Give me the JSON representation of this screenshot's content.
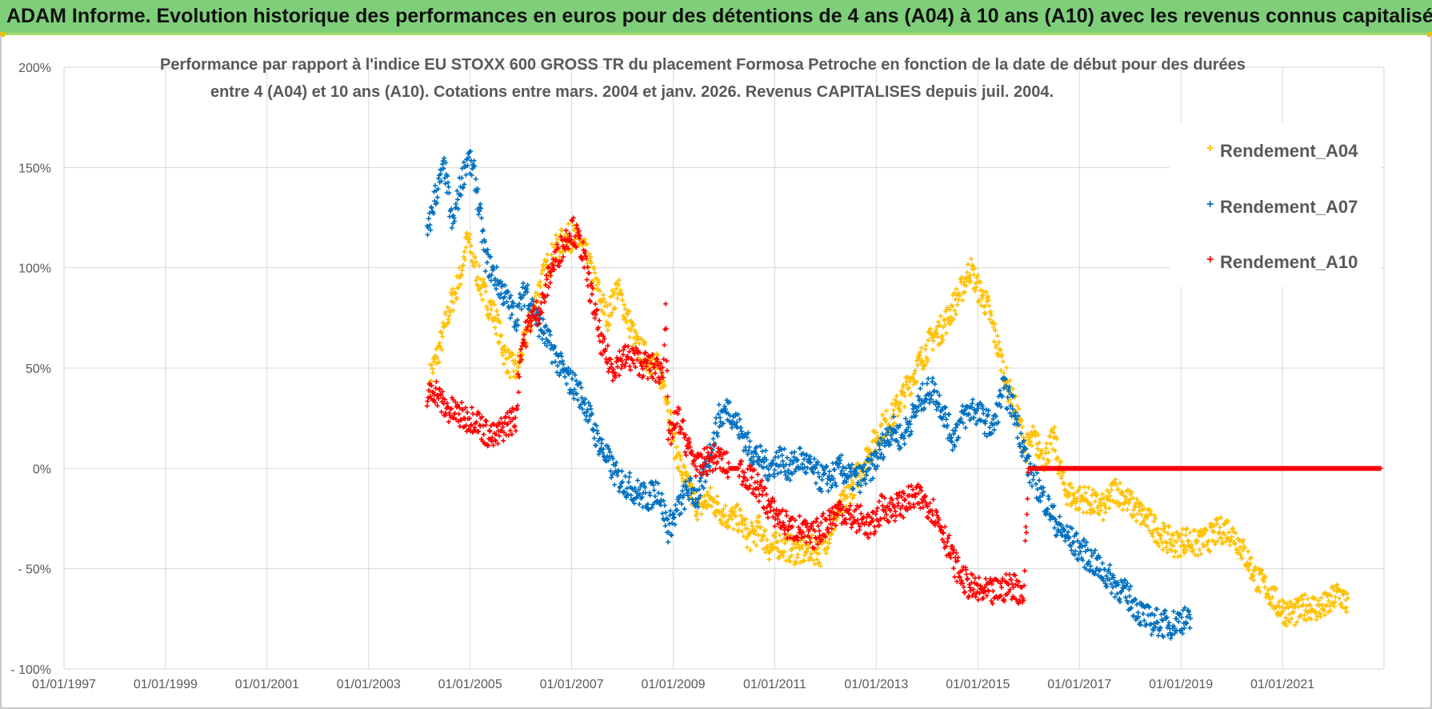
{
  "banner": {
    "title": "ADAM Informe. Evolution historique des performances en euros pour des détentions de 4 ans (A04) à 10 ans (A10) avec les revenus connus capitalisés"
  },
  "colors": {
    "banner_bg": "#7fcf7a",
    "A04": "#ffc000",
    "A07": "#0070c0",
    "A10": "#ff0000",
    "grid": "#d9d9d9"
  },
  "chart_data": {
    "type": "scatter",
    "title_line1": "Performance par rapport à l'indice EU STOXX 600 GROSS TR  du placement Formosa Petroche  en fonction de la date de début pour des durées",
    "title_line2": "entre 4 (A04) et 10 ans (A10).  Cotations entre mars. 2004 et janv. 2026. Revenus CAPITALISES depuis juil. 2004.",
    "xlim": [
      1997.0,
      2023.0
    ],
    "ylim": [
      -100,
      200
    ],
    "x_ticks": [
      {
        "value": 1997,
        "label": "01/01/1997"
      },
      {
        "value": 1999,
        "label": "01/01/1999"
      },
      {
        "value": 2001,
        "label": "01/01/2001"
      },
      {
        "value": 2003,
        "label": "01/01/2003"
      },
      {
        "value": 2005,
        "label": "01/01/2005"
      },
      {
        "value": 2007,
        "label": "01/01/2007"
      },
      {
        "value": 2009,
        "label": "01/01/2009"
      },
      {
        "value": 2011,
        "label": "01/01/2011"
      },
      {
        "value": 2013,
        "label": "01/01/2013"
      },
      {
        "value": 2015,
        "label": "01/01/2015"
      },
      {
        "value": 2017,
        "label": "01/01/2017"
      },
      {
        "value": 2019,
        "label": "01/01/2019"
      },
      {
        "value": 2021,
        "label": "01/01/2021"
      }
    ],
    "y_ticks": [
      {
        "value": 200,
        "label": "200%"
      },
      {
        "value": 150,
        "label": "150%"
      },
      {
        "value": 100,
        "label": "100%"
      },
      {
        "value": 50,
        "label": "50%"
      },
      {
        "value": 0,
        "label": "0%"
      },
      {
        "value": -50,
        "label": "- 50%"
      },
      {
        "value": -100,
        "label": "- 100%"
      }
    ],
    "legend": [
      "Rendement_A04",
      "Rendement_A07",
      "Rendement_A10"
    ],
    "series": [
      {
        "name": "Rendement_A04",
        "color": "#ffc000",
        "points": [
          [
            2004.2,
            45
          ],
          [
            2004.4,
            60
          ],
          [
            2004.6,
            80
          ],
          [
            2004.8,
            95
          ],
          [
            2004.95,
            115
          ],
          [
            2005.1,
            100
          ],
          [
            2005.3,
            85
          ],
          [
            2005.5,
            75
          ],
          [
            2005.7,
            55
          ],
          [
            2005.9,
            48
          ],
          [
            2006.1,
            65
          ],
          [
            2006.3,
            85
          ],
          [
            2006.5,
            100
          ],
          [
            2006.7,
            110
          ],
          [
            2006.9,
            115
          ],
          [
            2007.1,
            115
          ],
          [
            2007.3,
            105
          ],
          [
            2007.5,
            90
          ],
          [
            2007.7,
            75
          ],
          [
            2007.9,
            90
          ],
          [
            2008.1,
            75
          ],
          [
            2008.3,
            60
          ],
          [
            2008.5,
            55
          ],
          [
            2008.7,
            50
          ],
          [
            2008.85,
            40
          ],
          [
            2009.0,
            15
          ],
          [
            2009.15,
            0
          ],
          [
            2009.3,
            -10
          ],
          [
            2009.5,
            -20
          ],
          [
            2009.7,
            -15
          ],
          [
            2009.9,
            -20
          ],
          [
            2010.1,
            -25
          ],
          [
            2010.3,
            -25
          ],
          [
            2010.5,
            -35
          ],
          [
            2010.7,
            -30
          ],
          [
            2010.9,
            -40
          ],
          [
            2011.1,
            -38
          ],
          [
            2011.3,
            -40
          ],
          [
            2011.5,
            -42
          ],
          [
            2011.7,
            -40
          ],
          [
            2011.9,
            -42
          ],
          [
            2012.1,
            -30
          ],
          [
            2012.3,
            -20
          ],
          [
            2012.5,
            -10
          ],
          [
            2012.7,
            0
          ],
          [
            2012.9,
            10
          ],
          [
            2013.1,
            20
          ],
          [
            2013.3,
            25
          ],
          [
            2013.5,
            35
          ],
          [
            2013.7,
            45
          ],
          [
            2013.9,
            55
          ],
          [
            2014.1,
            65
          ],
          [
            2014.3,
            70
          ],
          [
            2014.5,
            80
          ],
          [
            2014.7,
            90
          ],
          [
            2014.85,
            100
          ],
          [
            2015.0,
            90
          ],
          [
            2015.2,
            80
          ],
          [
            2015.4,
            60
          ],
          [
            2015.6,
            40
          ],
          [
            2015.8,
            25
          ],
          [
            2015.95,
            10
          ],
          [
            2016.1,
            15
          ],
          [
            2016.3,
            5
          ],
          [
            2016.5,
            15
          ],
          [
            2016.7,
            -10
          ],
          [
            2016.9,
            -15
          ],
          [
            2017.1,
            -15
          ],
          [
            2017.3,
            -18
          ],
          [
            2017.5,
            -20
          ],
          [
            2017.7,
            -10
          ],
          [
            2017.9,
            -15
          ],
          [
            2018.1,
            -20
          ],
          [
            2018.3,
            -25
          ],
          [
            2018.5,
            -30
          ],
          [
            2018.7,
            -35
          ],
          [
            2018.9,
            -38
          ],
          [
            2019.1,
            -35
          ],
          [
            2019.3,
            -38
          ],
          [
            2019.5,
            -36
          ],
          [
            2019.7,
            -32
          ],
          [
            2019.9,
            -30
          ],
          [
            2020.1,
            -35
          ],
          [
            2020.3,
            -45
          ],
          [
            2020.5,
            -55
          ],
          [
            2020.7,
            -60
          ],
          [
            2020.9,
            -68
          ],
          [
            2021.1,
            -72
          ],
          [
            2021.3,
            -72
          ],
          [
            2021.5,
            -68
          ],
          [
            2021.7,
            -70
          ],
          [
            2021.9,
            -68
          ],
          [
            2022.1,
            -62
          ],
          [
            2022.3,
            -68
          ]
        ]
      },
      {
        "name": "Rendement_A07",
        "color": "#0070c0",
        "points": [
          [
            2004.15,
            115
          ],
          [
            2004.3,
            135
          ],
          [
            2004.5,
            150
          ],
          [
            2004.65,
            120
          ],
          [
            2004.8,
            140
          ],
          [
            2004.95,
            155
          ],
          [
            2005.1,
            145
          ],
          [
            2005.3,
            105
          ],
          [
            2005.5,
            95
          ],
          [
            2005.7,
            85
          ],
          [
            2005.9,
            75
          ],
          [
            2006.1,
            90
          ],
          [
            2006.3,
            75
          ],
          [
            2006.5,
            65
          ],
          [
            2006.7,
            55
          ],
          [
            2006.9,
            45
          ],
          [
            2007.1,
            40
          ],
          [
            2007.3,
            30
          ],
          [
            2007.5,
            15
          ],
          [
            2007.7,
            5
          ],
          [
            2007.9,
            -5
          ],
          [
            2008.1,
            -8
          ],
          [
            2008.3,
            -12
          ],
          [
            2008.5,
            -15
          ],
          [
            2008.7,
            -10
          ],
          [
            2008.9,
            -30
          ],
          [
            2009.1,
            -20
          ],
          [
            2009.3,
            -10
          ],
          [
            2009.5,
            -15
          ],
          [
            2009.7,
            5
          ],
          [
            2009.9,
            25
          ],
          [
            2010.1,
            30
          ],
          [
            2010.3,
            20
          ],
          [
            2010.5,
            10
          ],
          [
            2010.7,
            5
          ],
          [
            2010.9,
            0
          ],
          [
            2011.1,
            5
          ],
          [
            2011.3,
            0
          ],
          [
            2011.5,
            5
          ],
          [
            2011.7,
            0
          ],
          [
            2011.9,
            -5
          ],
          [
            2012.1,
            -5
          ],
          [
            2012.3,
            0
          ],
          [
            2012.5,
            -5
          ],
          [
            2012.7,
            -5
          ],
          [
            2012.9,
            0
          ],
          [
            2013.1,
            10
          ],
          [
            2013.3,
            20
          ],
          [
            2013.5,
            15
          ],
          [
            2013.7,
            25
          ],
          [
            2013.9,
            35
          ],
          [
            2014.1,
            40
          ],
          [
            2014.3,
            30
          ],
          [
            2014.5,
            15
          ],
          [
            2014.7,
            25
          ],
          [
            2014.9,
            30
          ],
          [
            2015.1,
            25
          ],
          [
            2015.3,
            20
          ],
          [
            2015.5,
            40
          ],
          [
            2015.7,
            30
          ],
          [
            2015.85,
            15
          ],
          [
            2016.0,
            0
          ],
          [
            2016.2,
            -10
          ],
          [
            2016.4,
            -20
          ],
          [
            2016.6,
            -30
          ],
          [
            2016.8,
            -35
          ],
          [
            2017.0,
            -40
          ],
          [
            2017.2,
            -45
          ],
          [
            2017.4,
            -50
          ],
          [
            2017.6,
            -55
          ],
          [
            2017.8,
            -60
          ],
          [
            2018.0,
            -65
          ],
          [
            2018.2,
            -72
          ],
          [
            2018.4,
            -76
          ],
          [
            2018.6,
            -77
          ],
          [
            2018.8,
            -78
          ],
          [
            2019.0,
            -75
          ],
          [
            2019.2,
            -77
          ]
        ]
      },
      {
        "name": "Rendement_A10",
        "color": "#ff0000",
        "points": [
          [
            2004.15,
            35
          ],
          [
            2004.3,
            40
          ],
          [
            2004.5,
            30
          ],
          [
            2004.7,
            28
          ],
          [
            2004.9,
            25
          ],
          [
            2005.1,
            25
          ],
          [
            2005.3,
            18
          ],
          [
            2005.5,
            15
          ],
          [
            2005.7,
            22
          ],
          [
            2005.9,
            25
          ],
          [
            2006.0,
            60
          ],
          [
            2006.2,
            75
          ],
          [
            2006.4,
            80
          ],
          [
            2006.6,
            100
          ],
          [
            2006.8,
            110
          ],
          [
            2007.0,
            120
          ],
          [
            2007.2,
            110
          ],
          [
            2007.4,
            85
          ],
          [
            2007.6,
            60
          ],
          [
            2007.8,
            50
          ],
          [
            2008.0,
            55
          ],
          [
            2008.2,
            55
          ],
          [
            2008.4,
            52
          ],
          [
            2008.6,
            50
          ],
          [
            2008.8,
            48
          ],
          [
            2008.85,
            85
          ],
          [
            2008.9,
            15
          ],
          [
            2009.1,
            25
          ],
          [
            2009.3,
            10
          ],
          [
            2009.5,
            0
          ],
          [
            2009.7,
            5
          ],
          [
            2009.9,
            5
          ],
          [
            2010.1,
            0
          ],
          [
            2010.3,
            0
          ],
          [
            2010.5,
            -5
          ],
          [
            2010.7,
            -10
          ],
          [
            2010.9,
            -20
          ],
          [
            2011.1,
            -25
          ],
          [
            2011.3,
            -30
          ],
          [
            2011.5,
            -30
          ],
          [
            2011.7,
            -35
          ],
          [
            2011.9,
            -30
          ],
          [
            2012.1,
            -25
          ],
          [
            2012.3,
            -20
          ],
          [
            2012.5,
            -25
          ],
          [
            2012.7,
            -25
          ],
          [
            2012.9,
            -30
          ],
          [
            2013.1,
            -20
          ],
          [
            2013.3,
            -20
          ],
          [
            2013.5,
            -18
          ],
          [
            2013.7,
            -15
          ],
          [
            2013.9,
            -15
          ],
          [
            2014.1,
            -20
          ],
          [
            2014.3,
            -30
          ],
          [
            2014.5,
            -45
          ],
          [
            2014.7,
            -55
          ],
          [
            2014.9,
            -60
          ],
          [
            2015.1,
            -62
          ],
          [
            2015.3,
            -62
          ],
          [
            2015.5,
            -60
          ],
          [
            2015.7,
            -58
          ],
          [
            2015.9,
            -63
          ],
          [
            2016.0,
            0
          ],
          [
            2016.5,
            0
          ],
          [
            2017.0,
            0
          ],
          [
            2017.5,
            0
          ],
          [
            2018.0,
            0
          ],
          [
            2018.5,
            0
          ],
          [
            2019.0,
            0
          ],
          [
            2019.5,
            0
          ],
          [
            2020.0,
            0
          ],
          [
            2020.5,
            0
          ],
          [
            2021.0,
            0
          ],
          [
            2021.5,
            0
          ],
          [
            2022.0,
            0
          ],
          [
            2022.5,
            0
          ],
          [
            2022.95,
            0
          ]
        ]
      }
    ]
  }
}
